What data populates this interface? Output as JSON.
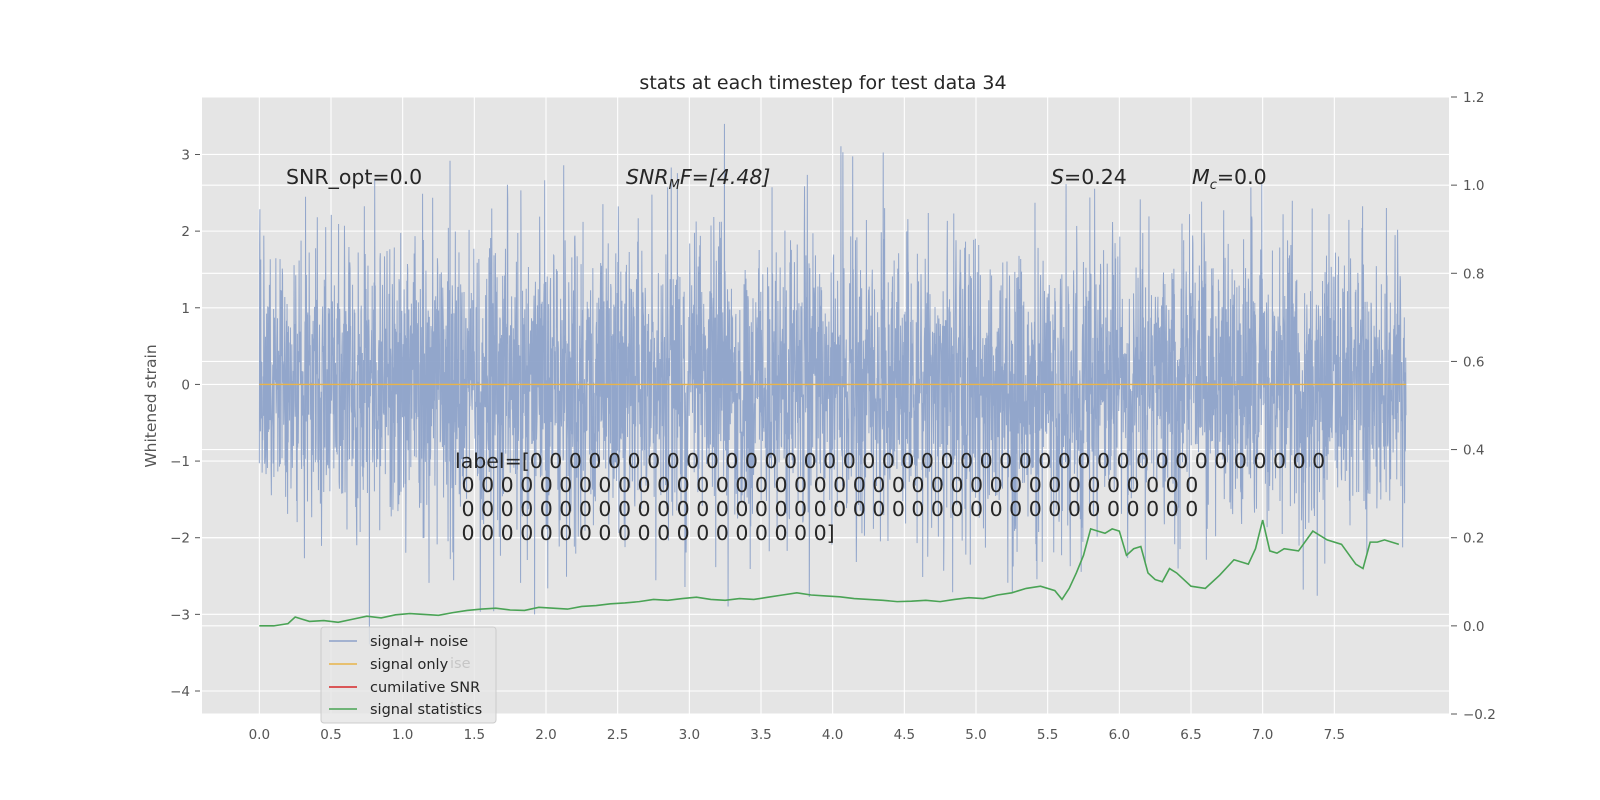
{
  "chart_data": {
    "type": "line",
    "title": "stats at each timestep for test data 34",
    "ylabel": "Whitened strain",
    "xlabel": "",
    "xlim": [
      -0.4,
      8.3
    ],
    "ylim": [
      -4.3,
      3.75
    ],
    "ylim_right": [
      -0.2,
      1.2
    ],
    "xticks": [
      "0.0",
      "0.5",
      "1.0",
      "1.5",
      "2.0",
      "2.5",
      "3.0",
      "3.5",
      "4.0",
      "4.5",
      "5.0",
      "5.5",
      "6.0",
      "6.5",
      "7.0",
      "7.5"
    ],
    "yticks": [
      "3",
      "2",
      "1",
      "0",
      "−1",
      "−2",
      "−3",
      "−4"
    ],
    "yticks_right": [
      "1.2",
      "1.0",
      "0.8",
      "0.6",
      "0.4",
      "0.2",
      "0.0",
      "−0.2"
    ],
    "annotations": {
      "snr_opt": "SNR_opt=0.0",
      "snr_mf_base": "SNR",
      "snr_mf_sub": "M",
      "snr_mf_rest": "F=[4.48]",
      "s_var": "S",
      "s_value": "=0.24",
      "mc_base": "M",
      "mc_sub": "c",
      "mc_value": "=0.0"
    },
    "label_text": [
      "label=[0 0 0 0 0 0 0 0 0 0 0 0 0 0 0 0 0 0 0 0 0 0 0 0 0 0 0 0 0 0 0 0 0 0 0 0 0 0 0 0 0",
      " 0 0 0 0 0 0 0 0 0 0 0 0 0 0 0 0 0 0 0 0 0 0 0 0 0 0 0 0 0 0 0 0 0 0 0 0 0 0",
      " 0 0 0 0 0 0 0 0 0 0 0 0 0 0 0 0 0 0 0 0 0 0 0 0 0 0 0 0 0 0 0 0 0 0 0 0 0 0",
      " 0 0 0 0 0 0 0 0 0 0 0 0 0 0 0 0 0 0 0]"
    ],
    "legend": {
      "position": "lower-left",
      "entries": [
        "signal+ noise",
        "signal only",
        "cumilative SNR",
        "signal statistics"
      ],
      "ghost_text": [
        "ise",
        "ise"
      ]
    },
    "series": [
      {
        "name": "signal+ noise",
        "axis": "left",
        "color": "#8da2c9",
        "x_range": [
          0.0,
          8.0
        ],
        "samples": 4096,
        "typical_envelope": [
          -1.5,
          1.5
        ],
        "max": 3.4,
        "min": -3.95
      },
      {
        "name": "signal only",
        "axis": "left",
        "color": "#e8b34a",
        "x": [
          0.0,
          8.0
        ],
        "values": [
          0.0,
          0.0
        ]
      },
      {
        "name": "cumilative SNR",
        "axis": "right",
        "color": "#d62728",
        "x": [],
        "values": []
      },
      {
        "name": "signal statistics",
        "axis": "right",
        "color": "#4aa355",
        "x": [
          0.0,
          0.1,
          0.2,
          0.25,
          0.3,
          0.35,
          0.45,
          0.55,
          0.65,
          0.75,
          0.85,
          0.95,
          1.05,
          1.15,
          1.25,
          1.35,
          1.45,
          1.55,
          1.65,
          1.75,
          1.85,
          1.95,
          2.05,
          2.15,
          2.25,
          2.35,
          2.45,
          2.55,
          2.65,
          2.75,
          2.85,
          2.95,
          3.05,
          3.15,
          3.25,
          3.35,
          3.45,
          3.55,
          3.65,
          3.75,
          3.85,
          3.95,
          4.05,
          4.15,
          4.25,
          4.35,
          4.45,
          4.55,
          4.65,
          4.75,
          4.85,
          4.95,
          5.05,
          5.15,
          5.25,
          5.35,
          5.45,
          5.55,
          5.6,
          5.65,
          5.7,
          5.75,
          5.8,
          5.85,
          5.9,
          5.95,
          6.0,
          6.05,
          6.1,
          6.15,
          6.2,
          6.25,
          6.3,
          6.35,
          6.4,
          6.5,
          6.6,
          6.7,
          6.8,
          6.9,
          6.95,
          7.0,
          7.05,
          7.1,
          7.15,
          7.25,
          7.35,
          7.45,
          7.55,
          7.65,
          7.7,
          7.75,
          7.8,
          7.85,
          7.9,
          7.95
        ],
        "values": [
          0.0,
          0.0,
          0.005,
          0.02,
          0.015,
          0.01,
          0.012,
          0.008,
          0.015,
          0.022,
          0.018,
          0.025,
          0.028,
          0.026,
          0.024,
          0.03,
          0.035,
          0.038,
          0.04,
          0.036,
          0.035,
          0.042,
          0.04,
          0.038,
          0.044,
          0.046,
          0.05,
          0.052,
          0.055,
          0.06,
          0.058,
          0.062,
          0.065,
          0.06,
          0.058,
          0.062,
          0.06,
          0.065,
          0.07,
          0.075,
          0.07,
          0.068,
          0.066,
          0.062,
          0.06,
          0.058,
          0.055,
          0.056,
          0.058,
          0.055,
          0.06,
          0.064,
          0.062,
          0.07,
          0.075,
          0.085,
          0.09,
          0.08,
          0.06,
          0.085,
          0.12,
          0.16,
          0.22,
          0.215,
          0.21,
          0.22,
          0.215,
          0.16,
          0.175,
          0.18,
          0.12,
          0.105,
          0.1,
          0.13,
          0.12,
          0.09,
          0.085,
          0.115,
          0.15,
          0.14,
          0.175,
          0.24,
          0.17,
          0.165,
          0.175,
          0.17,
          0.215,
          0.195,
          0.185,
          0.14,
          0.13,
          0.19,
          0.19,
          0.195,
          0.19,
          0.185
        ]
      }
    ]
  }
}
